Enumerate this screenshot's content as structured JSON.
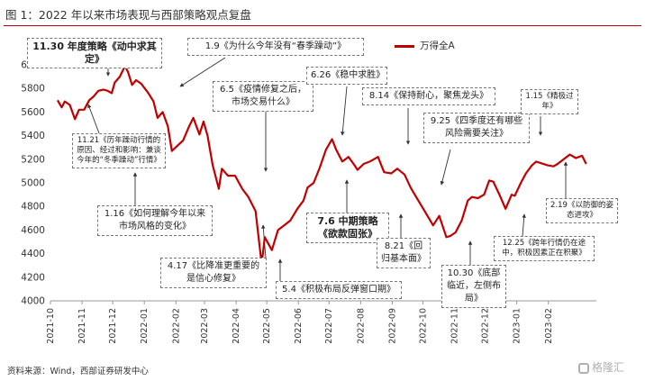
{
  "figure": {
    "title": "图 1：2022 年以来市场表现与西部策略观点复盘",
    "source": "资料来源：Wind，西部证券研发中心",
    "watermark": "格隆汇"
  },
  "chart_data": {
    "type": "line",
    "legend_position": "top-right",
    "grid": false,
    "line_color": "#c00000",
    "ylim": [
      4000,
      6000
    ],
    "yticks": [
      4000,
      4200,
      4400,
      4600,
      4800,
      5000,
      5200,
      5400,
      5600,
      5800,
      6000
    ],
    "xticks": [
      "2021-10",
      "2021-11",
      "2021-12",
      "2022-01",
      "2022-02",
      "2022-03",
      "2022-04",
      "2022-05",
      "2022-06",
      "2022-07",
      "2022-08",
      "2022-09",
      "2022-10",
      "2022-11",
      "2022-12",
      "2023-01",
      "2023-02"
    ],
    "series": [
      {
        "name": "万得全A",
        "points": [
          [
            "2021-10-08",
            5700
          ],
          [
            "2021-10-12",
            5640
          ],
          [
            "2021-10-15",
            5690
          ],
          [
            "2021-10-20",
            5660
          ],
          [
            "2021-10-25",
            5540
          ],
          [
            "2021-10-29",
            5620
          ],
          [
            "2021-11-03",
            5620
          ],
          [
            "2021-11-08",
            5700
          ],
          [
            "2021-11-12",
            5730
          ],
          [
            "2021-11-17",
            5780
          ],
          [
            "2021-11-22",
            5790
          ],
          [
            "2021-11-26",
            5780
          ],
          [
            "2021-11-30",
            5760
          ],
          [
            "2021-12-03",
            5850
          ],
          [
            "2021-12-08",
            5900
          ],
          [
            "2021-12-13",
            5990
          ],
          [
            "2021-12-16",
            5940
          ],
          [
            "2021-12-20",
            5830
          ],
          [
            "2021-12-24",
            5870
          ],
          [
            "2021-12-29",
            5840
          ],
          [
            "2022-01-05",
            5760
          ],
          [
            "2022-01-10",
            5690
          ],
          [
            "2022-01-14",
            5550
          ],
          [
            "2022-01-19",
            5600
          ],
          [
            "2022-01-24",
            5480
          ],
          [
            "2022-01-28",
            5270
          ],
          [
            "2022-02-08",
            5360
          ],
          [
            "2022-02-14",
            5480
          ],
          [
            "2022-02-18",
            5550
          ],
          [
            "2022-02-24",
            5410
          ],
          [
            "2022-02-28",
            5520
          ],
          [
            "2022-03-04",
            5400
          ],
          [
            "2022-03-09",
            5150
          ],
          [
            "2022-03-15",
            4950
          ],
          [
            "2022-03-18",
            5120
          ],
          [
            "2022-03-24",
            5060
          ],
          [
            "2022-03-31",
            5060
          ],
          [
            "2022-04-07",
            4950
          ],
          [
            "2022-04-13",
            4880
          ],
          [
            "2022-04-20",
            4760
          ],
          [
            "2022-04-26",
            4310
          ],
          [
            "2022-04-29",
            4540
          ],
          [
            "2022-05-06",
            4430
          ],
          [
            "2022-05-12",
            4600
          ],
          [
            "2022-05-18",
            4640
          ],
          [
            "2022-05-24",
            4680
          ],
          [
            "2022-05-31",
            4780
          ],
          [
            "2022-06-06",
            4850
          ],
          [
            "2022-06-10",
            4960
          ],
          [
            "2022-06-16",
            5000
          ],
          [
            "2022-06-22",
            5130
          ],
          [
            "2022-06-28",
            5280
          ],
          [
            "2022-07-04",
            5370
          ],
          [
            "2022-07-08",
            5280
          ],
          [
            "2022-07-14",
            5180
          ],
          [
            "2022-07-20",
            5220
          ],
          [
            "2022-07-26",
            5150
          ],
          [
            "2022-07-29",
            5110
          ],
          [
            "2022-08-04",
            5160
          ],
          [
            "2022-08-10",
            5180
          ],
          [
            "2022-08-18",
            5220
          ],
          [
            "2022-08-24",
            5090
          ],
          [
            "2022-08-31",
            5080
          ],
          [
            "2022-09-06",
            5120
          ],
          [
            "2022-09-13",
            5070
          ],
          [
            "2022-09-19",
            4960
          ],
          [
            "2022-09-23",
            4900
          ],
          [
            "2022-09-30",
            4800
          ],
          [
            "2022-10-11",
            4640
          ],
          [
            "2022-10-17",
            4720
          ],
          [
            "2022-10-24",
            4540
          ],
          [
            "2022-10-28",
            4550
          ],
          [
            "2022-11-02",
            4580
          ],
          [
            "2022-11-08",
            4680
          ],
          [
            "2022-11-14",
            4850
          ],
          [
            "2022-11-18",
            4880
          ],
          [
            "2022-11-24",
            4870
          ],
          [
            "2022-11-30",
            4900
          ],
          [
            "2022-12-05",
            5020
          ],
          [
            "2022-12-09",
            5010
          ],
          [
            "2022-12-15",
            4900
          ],
          [
            "2022-12-21",
            4780
          ],
          [
            "2022-12-27",
            4900
          ],
          [
            "2022-12-30",
            4890
          ],
          [
            "2023-01-05",
            5000
          ],
          [
            "2023-01-10",
            5080
          ],
          [
            "2023-01-16",
            5150
          ],
          [
            "2023-01-20",
            5180
          ],
          [
            "2023-01-31",
            5150
          ],
          [
            "2023-02-06",
            5140
          ],
          [
            "2023-02-10",
            5160
          ],
          [
            "2023-02-16",
            5200
          ],
          [
            "2023-02-22",
            5240
          ],
          [
            "2023-02-28",
            5210
          ],
          [
            "2023-03-06",
            5230
          ],
          [
            "2023-03-10",
            5160
          ]
        ]
      }
    ],
    "annotations": [
      {
        "text": "11.30 年度策略《动中求其定》",
        "bold": true
      },
      {
        "text": "1.9《为什么今年没有“春季躁动”》"
      },
      {
        "text": "11.21《历年躁动行情的原因、经过和影响：兼谈今年的“冬季躁动”行情》",
        "small": true
      },
      {
        "text": "1.16《如何理解今年以来市场风格的变化》"
      },
      {
        "text": "6.5《疫情修复之后，市场交易什么》"
      },
      {
        "text": "6.26《稳中求胜》"
      },
      {
        "text": "8.14《保持耐心，聚焦龙头》"
      },
      {
        "text": "9.25《四季度还有哪些风险需要关注》"
      },
      {
        "text": "1.15《精极过年》",
        "small": true
      },
      {
        "text": "2.19《以防御的姿态进攻》",
        "small": true
      },
      {
        "text": "4.17《比降准更重要的是信心修复》"
      },
      {
        "text": "5.4《积极布局反弹窗口期》"
      },
      {
        "text": "7.6 中期策略《欲款固张》",
        "bold": true
      },
      {
        "text": "8.21《回归基本面》"
      },
      {
        "text": "10.30《底部临近，左侧布局》"
      },
      {
        "text": "12.25《跨年行情仍在途中，积极因素正在积聚》",
        "small": true
      }
    ]
  }
}
